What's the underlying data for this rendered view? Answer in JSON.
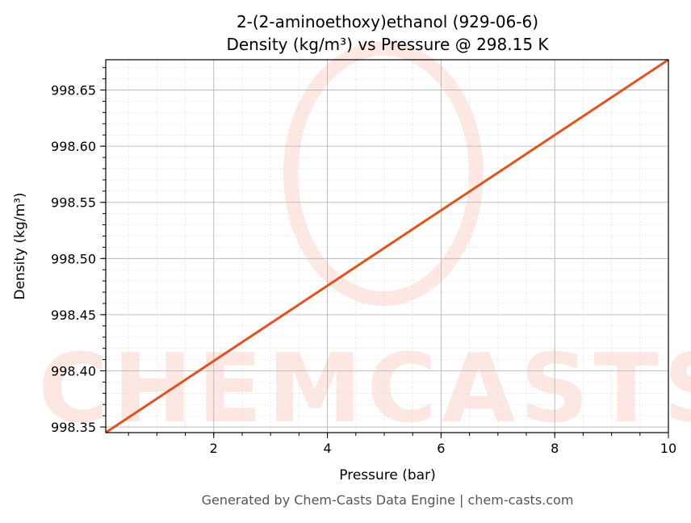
{
  "chart_data": {
    "type": "line",
    "title": "2-(2-aminoethoxy)ethanol (929-06-6)",
    "subtitle": "Density (kg/m³) vs Pressure @ 298.15 K",
    "xlabel": "Pressure (bar)",
    "ylabel": "Density (kg/m³)",
    "xlim": [
      0.1,
      10
    ],
    "ylim": [
      998.345,
      998.677
    ],
    "xticks": [
      2,
      4,
      6,
      8,
      10
    ],
    "xtick_labels": [
      "2",
      "4",
      "6",
      "8",
      "10"
    ],
    "yticks": [
      998.35,
      998.4,
      998.45,
      998.5,
      998.55,
      998.6,
      998.65
    ],
    "ytick_labels": [
      "998.35",
      "998.40",
      "998.45",
      "998.50",
      "998.55",
      "998.60",
      "998.65"
    ],
    "grid": true,
    "series": [
      {
        "x": [
          0.1,
          10
        ],
        "y": [
          998.345,
          998.677
        ],
        "color": "#e0531f"
      }
    ],
    "watermark": "CHEMCASTS",
    "footer": "Generated by Chem-Casts Data Engine | chem-casts.com"
  }
}
